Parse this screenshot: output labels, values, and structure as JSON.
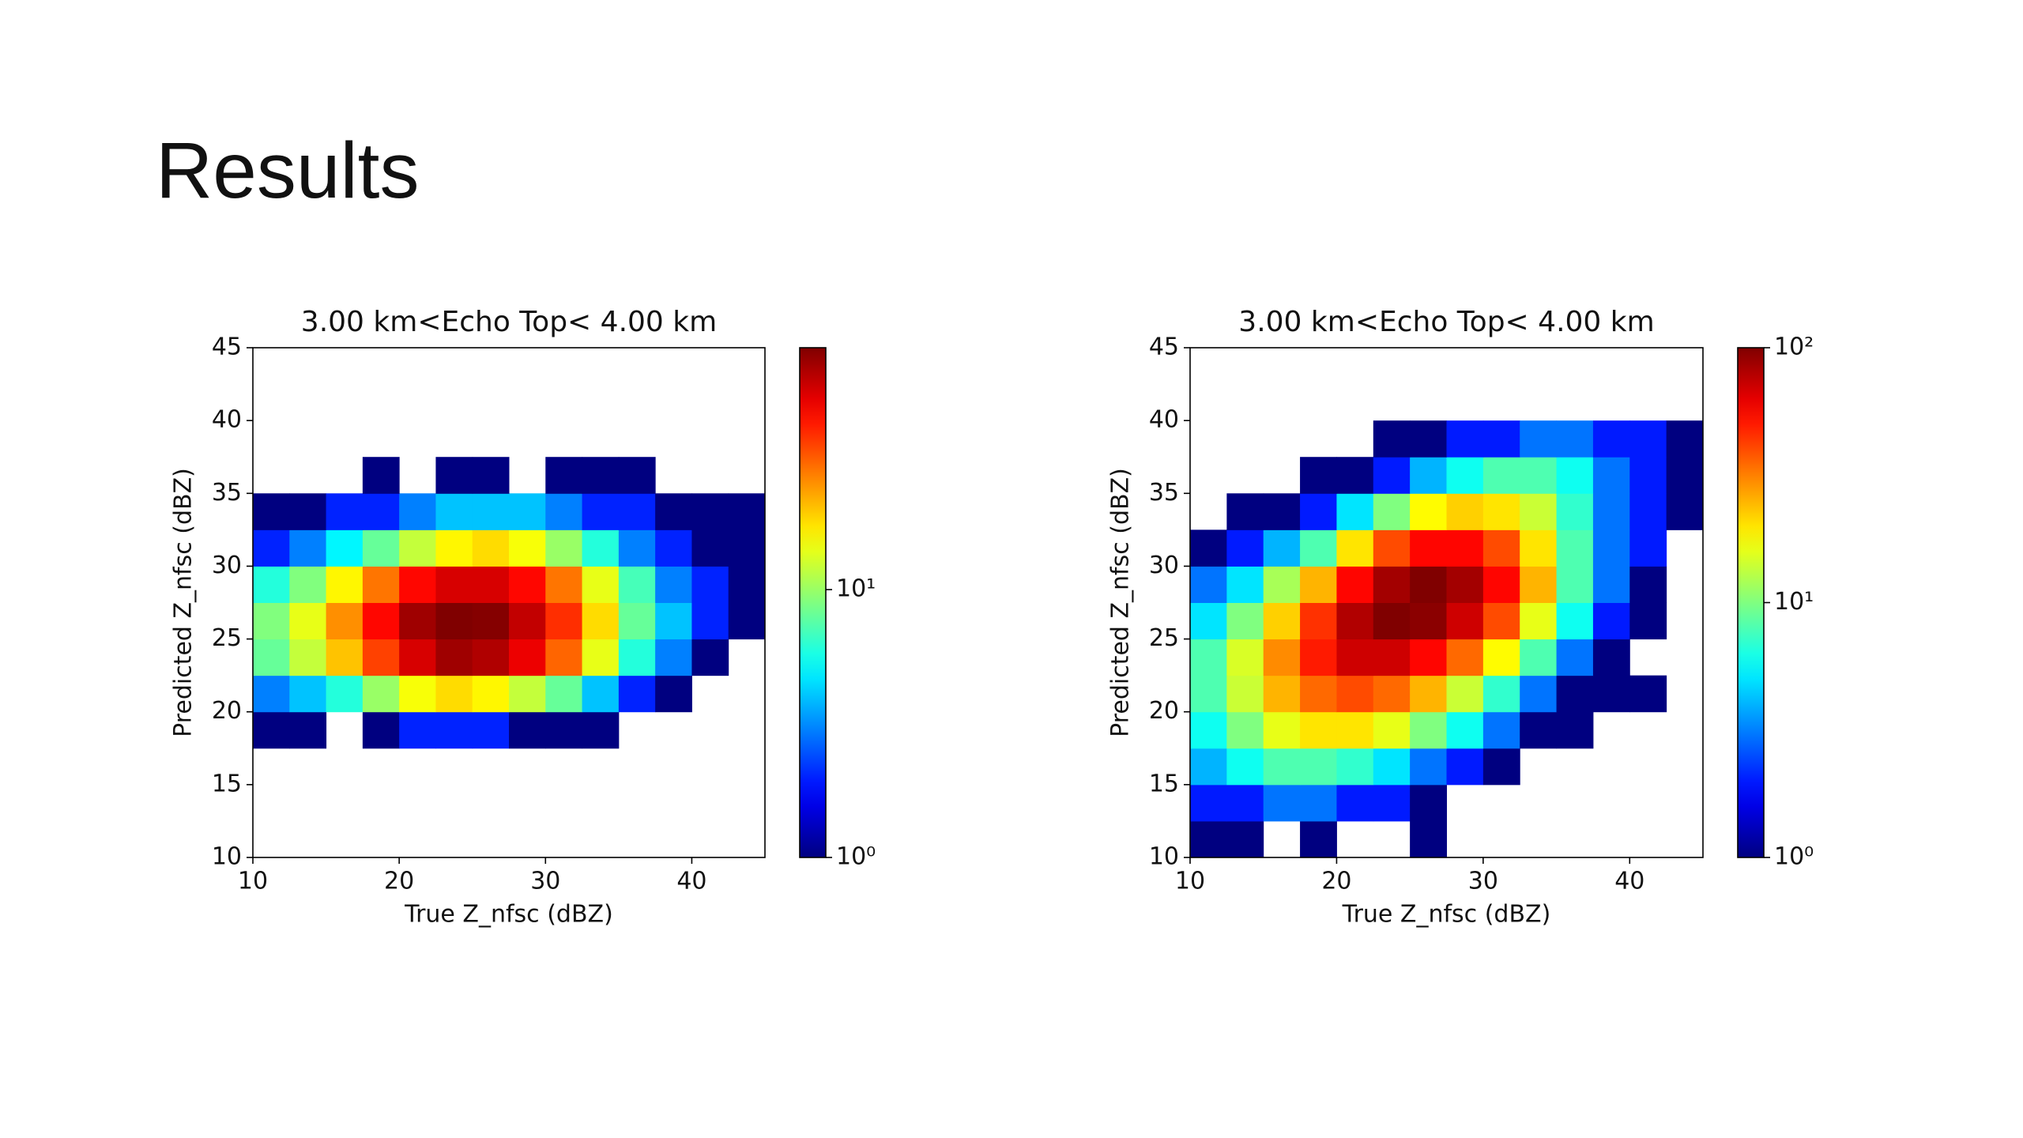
{
  "title": "Results",
  "chart_data": [
    {
      "type": "hist2d",
      "title": "3.00 km<Echo Top<  4.00 km",
      "xlabel": "True Z_nfsc (dBZ)",
      "ylabel": "Predicted Z_nfsc (dBZ)",
      "xlim": [
        10,
        45
      ],
      "ylim": [
        10,
        45
      ],
      "xticks": [
        10,
        20,
        30,
        40
      ],
      "yticks": [
        10,
        15,
        20,
        25,
        30,
        35,
        40,
        45
      ],
      "colormap": "jet",
      "color_log": true,
      "clim": [
        1,
        80
      ],
      "cticks": [
        {
          "value": 1,
          "label": "10⁰"
        },
        {
          "value": 10,
          "label": "10¹"
        }
      ],
      "xbins": [
        10,
        12.5,
        15,
        17.5,
        20,
        22.5,
        25,
        27.5,
        30,
        32.5,
        35,
        37.5,
        40,
        42.5,
        45
      ],
      "ybins": [
        10,
        12.5,
        15,
        17.5,
        20,
        22.5,
        25,
        27.5,
        30,
        32.5,
        35,
        37.5,
        40,
        42.5,
        45
      ],
      "counts": [
        [
          null,
          null,
          null,
          null,
          null,
          null,
          null,
          null,
          null,
          null,
          null,
          null,
          null,
          null
        ],
        [
          null,
          null,
          null,
          null,
          null,
          null,
          null,
          null,
          null,
          null,
          null,
          null,
          null,
          null
        ],
        [
          null,
          null,
          null,
          null,
          null,
          null,
          null,
          null,
          null,
          null,
          null,
          null,
          null,
          null
        ],
        [
          1,
          1,
          null,
          1,
          2,
          2,
          2,
          1,
          1,
          1,
          null,
          null,
          null,
          null
        ],
        [
          3,
          4,
          6,
          10,
          15,
          18,
          16,
          12,
          8,
          4,
          2,
          1,
          null,
          null
        ],
        [
          8,
          12,
          20,
          35,
          55,
          70,
          65,
          50,
          30,
          14,
          6,
          3,
          1,
          null
        ],
        [
          9,
          14,
          25,
          45,
          70,
          80,
          78,
          60,
          38,
          18,
          8,
          4,
          2,
          1
        ],
        [
          6,
          9,
          16,
          28,
          45,
          55,
          55,
          45,
          28,
          14,
          7,
          3,
          2,
          1
        ],
        [
          2,
          3,
          5,
          8,
          12,
          16,
          18,
          15,
          10,
          6,
          3,
          2,
          1,
          1
        ],
        [
          1,
          1,
          2,
          2,
          3,
          4,
          4,
          4,
          3,
          2,
          2,
          1,
          1,
          1
        ],
        [
          null,
          null,
          null,
          1,
          null,
          1,
          1,
          null,
          1,
          1,
          1,
          null,
          null,
          null
        ],
        [
          null,
          null,
          null,
          null,
          null,
          null,
          null,
          null,
          null,
          null,
          null,
          null,
          null,
          null
        ],
        [
          null,
          null,
          null,
          null,
          null,
          null,
          null,
          null,
          null,
          null,
          null,
          null,
          null,
          null
        ],
        [
          null,
          null,
          null,
          null,
          null,
          null,
          null,
          null,
          null,
          null,
          null,
          null,
          null,
          null
        ]
      ]
    },
    {
      "type": "hist2d",
      "title": "3.00 km<Echo Top<  4.00 km",
      "xlabel": "True Z_nfsc (dBZ)",
      "ylabel": "Predicted Z_nfsc (dBZ)",
      "xlim": [
        10,
        45
      ],
      "ylim": [
        10,
        45
      ],
      "xticks": [
        10,
        20,
        30,
        40
      ],
      "yticks": [
        10,
        15,
        20,
        25,
        30,
        35,
        40,
        45
      ],
      "colormap": "jet",
      "color_log": true,
      "clim": [
        1,
        100
      ],
      "cticks": [
        {
          "value": 1,
          "label": "10⁰"
        },
        {
          "value": 10,
          "label": "10¹"
        },
        {
          "value": 100,
          "label": "10²"
        }
      ],
      "xbins": [
        10,
        12.5,
        15,
        17.5,
        20,
        22.5,
        25,
        27.5,
        30,
        32.5,
        35,
        37.5,
        40,
        42.5,
        45
      ],
      "ybins": [
        10,
        12.5,
        15,
        17.5,
        20,
        22.5,
        25,
        27.5,
        30,
        32.5,
        35,
        37.5,
        40,
        42.5,
        45
      ],
      "counts": [
        [
          1,
          1,
          null,
          1,
          null,
          null,
          1,
          null,
          null,
          null,
          null,
          null,
          null,
          null
        ],
        [
          2,
          2,
          3,
          3,
          2,
          2,
          1,
          null,
          null,
          null,
          null,
          null,
          null,
          null
        ],
        [
          4,
          6,
          8,
          8,
          7,
          5,
          3,
          2,
          1,
          null,
          null,
          null,
          null,
          null
        ],
        [
          6,
          10,
          16,
          20,
          20,
          16,
          10,
          6,
          3,
          1,
          1,
          null,
          null,
          null
        ],
        [
          8,
          14,
          25,
          35,
          40,
          35,
          25,
          14,
          7,
          3,
          1,
          1,
          1,
          null
        ],
        [
          8,
          15,
          30,
          50,
          70,
          70,
          55,
          35,
          18,
          8,
          3,
          1,
          null,
          null
        ],
        [
          5,
          10,
          22,
          45,
          80,
          100,
          95,
          70,
          40,
          16,
          6,
          2,
          1,
          null
        ],
        [
          3,
          5,
          12,
          25,
          55,
          85,
          100,
          85,
          55,
          25,
          8,
          3,
          1,
          null
        ],
        [
          1,
          2,
          4,
          8,
          20,
          40,
          55,
          55,
          40,
          20,
          8,
          3,
          2,
          null
        ],
        [
          null,
          1,
          1,
          2,
          5,
          10,
          18,
          22,
          20,
          14,
          7,
          3,
          2,
          1
        ],
        [
          null,
          null,
          null,
          1,
          1,
          2,
          4,
          6,
          8,
          8,
          6,
          3,
          2,
          1
        ],
        [
          null,
          null,
          null,
          null,
          null,
          1,
          1,
          2,
          2,
          3,
          3,
          2,
          2,
          1
        ],
        [
          null,
          null,
          null,
          null,
          null,
          null,
          null,
          null,
          null,
          null,
          null,
          null,
          null,
          null
        ],
        [
          null,
          null,
          null,
          null,
          null,
          null,
          null,
          null,
          null,
          null,
          null,
          null,
          null,
          null
        ]
      ]
    }
  ]
}
